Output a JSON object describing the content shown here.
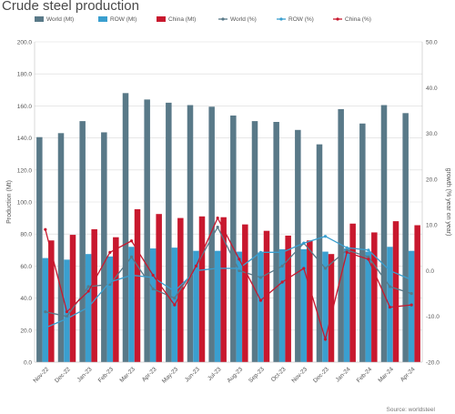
{
  "chart_data": {
    "type": "bar",
    "title": "Crude steel production",
    "source": "Source: worldsteel",
    "categories": [
      "Nov-22",
      "Dec-22",
      "Jan-23",
      "Feb-23",
      "Mar-23",
      "Apr-23",
      "May-23",
      "Jun-23",
      "Jul-23",
      "Aug-23",
      "Sep-23",
      "Oct-23",
      "Nov-23",
      "Dec-23",
      "Jan-24",
      "Feb-24",
      "Mar-24",
      "Apr-24"
    ],
    "ylabel": "Production (Mt)",
    "y2label": "growth (% year on year)",
    "ylim": [
      0,
      200
    ],
    "y2lim": [
      -20,
      50
    ],
    "yticks": [
      "0.0",
      "20.0",
      "40.0",
      "60.0",
      "80.0",
      "100.0",
      "120.0",
      "140.0",
      "160.0",
      "180.0",
      "200.0"
    ],
    "y2ticks": [
      "-20.0",
      "-10.0",
      "0.0",
      "10.0",
      "20.0",
      "30.0",
      "40.0",
      "50.0"
    ],
    "grid": true,
    "legend_position": "top",
    "bar_series": [
      {
        "name": "World (Mt)",
        "color": "#597988",
        "values": [
          140.5,
          143.0,
          150.5,
          143.5,
          168.0,
          164.0,
          162.0,
          160.5,
          159.5,
          154.0,
          150.5,
          150.0,
          145.0,
          136.0,
          158.0,
          149.0,
          160.5,
          155.5
        ]
      },
      {
        "name": "ROW (Mt)",
        "color": "#3a9fcf",
        "values": [
          65.0,
          64.0,
          67.5,
          66.0,
          72.0,
          71.0,
          71.5,
          69.5,
          69.5,
          69.0,
          68.5,
          70.5,
          70.5,
          69.0,
          71.0,
          69.0,
          72.0,
          69.5
        ]
      },
      {
        "name": "China (Mt)",
        "color": "#c8182e",
        "values": [
          76.0,
          79.5,
          83.0,
          78.0,
          95.5,
          92.5,
          90.0,
          91.0,
          90.5,
          86.0,
          82.0,
          79.0,
          76.0,
          67.5,
          86.5,
          81.0,
          88.0,
          85.5
        ]
      }
    ],
    "line_series": [
      {
        "name": "World (%)",
        "color": "#597988",
        "values": [
          -9.0,
          -10.0,
          -3.5,
          -3.0,
          3.0,
          -4.0,
          -6.0,
          1.0,
          9.5,
          0.0,
          -1.5,
          1.0,
          6.0,
          0.5,
          4.5,
          3.0,
          -3.5,
          -5.0
        ]
      },
      {
        "name": "ROW (%)",
        "color": "#3a9fcf",
        "values": [
          -12.5,
          -10.5,
          -8.0,
          -2.5,
          -1.0,
          -1.5,
          -4.5,
          0.0,
          0.5,
          0.5,
          4.0,
          4.0,
          6.0,
          7.5,
          5.0,
          4.5,
          0.0,
          -2.0
        ]
      },
      {
        "name": "China (%)",
        "color": "#c8182e",
        "values": [
          9.0,
          -9.0,
          -4.5,
          4.0,
          6.5,
          -1.0,
          -7.5,
          1.0,
          11.5,
          2.5,
          -6.5,
          -2.5,
          0.5,
          -15.0,
          4.0,
          2.5,
          -8.0,
          -7.5
        ]
      }
    ]
  }
}
